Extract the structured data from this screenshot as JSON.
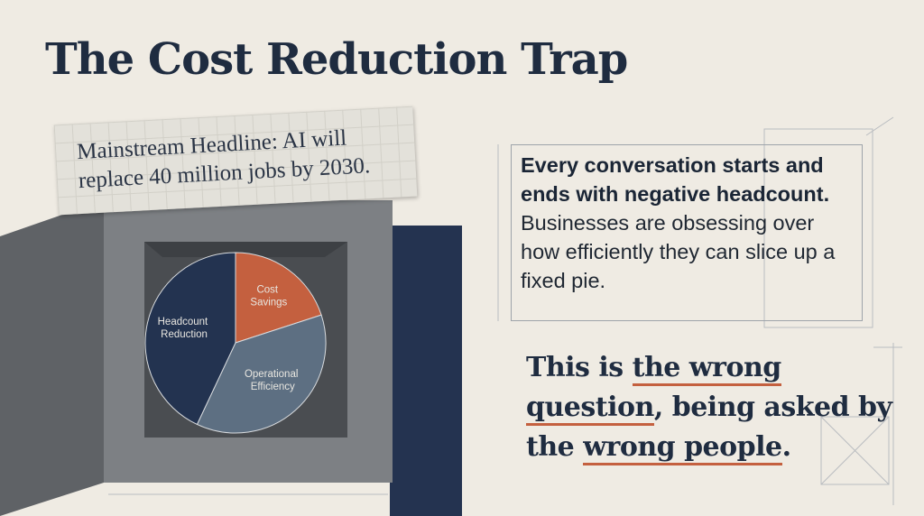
{
  "title": "The Cost Reduction Trap",
  "headline": {
    "lines": [
      "Mainstream Headline: AI will",
      "replace 40 million jobs by 2030."
    ]
  },
  "paragraph": {
    "bold": "Every conversation starts and ends with negative headcount.",
    "rest": "Businesses are obsessing over how efficiently they can slice up a fixed pie."
  },
  "statement": {
    "lines": [
      [
        "This is ",
        "the wrong"
      ],
      [
        "question",
        ", being asked by"
      ],
      [
        "the ",
        "wrong people",
        "."
      ]
    ]
  },
  "chart_data": {
    "type": "pie",
    "categories": [
      "Cost Savings",
      "Operational Efficiency",
      "Headcount Reduction"
    ],
    "values": [
      20,
      37,
      43
    ],
    "colors": [
      "#c4603f",
      "#5d6f82",
      "#233350"
    ]
  }
}
